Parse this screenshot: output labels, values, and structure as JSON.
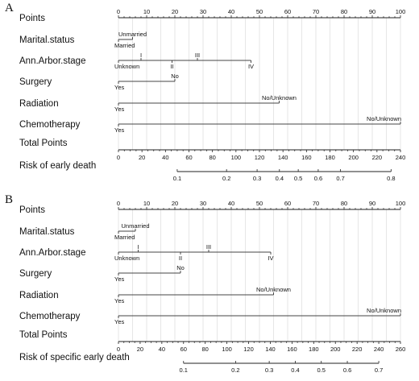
{
  "chart_data": [
    {
      "type": "nomogram",
      "panel": "A",
      "points_axis": {
        "label": "Points",
        "range": [
          0,
          100
        ],
        "ticks": [
          0,
          10,
          20,
          30,
          40,
          50,
          60,
          70,
          80,
          90,
          100
        ]
      },
      "variables": [
        {
          "name": "Marital.status",
          "categories": [
            {
              "label": "Married",
              "points": 0
            },
            {
              "label": "Unmarried",
              "points": 5
            }
          ]
        },
        {
          "name": "Ann.Arbor.stage",
          "categories": [
            {
              "label": "Unknown",
              "points": 0
            },
            {
              "label": "I",
              "points": 8
            },
            {
              "label": "II",
              "points": 19
            },
            {
              "label": "III",
              "points": 28
            },
            {
              "label": "IV",
              "points": 47
            }
          ]
        },
        {
          "name": "Surgery",
          "categories": [
            {
              "label": "Yes",
              "points": 0
            },
            {
              "label": "No",
              "points": 20
            }
          ]
        },
        {
          "name": "Radiation",
          "categories": [
            {
              "label": "Yes",
              "points": 0
            },
            {
              "label": "No/Unknown",
              "points": 57
            }
          ]
        },
        {
          "name": "Chemotherapy",
          "categories": [
            {
              "label": "Yes",
              "points": 0
            },
            {
              "label": "No/Unknown",
              "points": 100
            }
          ]
        }
      ],
      "total_points_axis": {
        "label": "Total Points",
        "range": [
          0,
          240
        ],
        "ticks": [
          0,
          20,
          40,
          60,
          80,
          100,
          120,
          140,
          160,
          180,
          200,
          220,
          240
        ]
      },
      "risk_axis": {
        "label": "Risk of early death",
        "ticks": [
          {
            "label": "0.1",
            "total": 50
          },
          {
            "label": "0.2",
            "total": 92
          },
          {
            "label": "0.3",
            "total": 118
          },
          {
            "label": "0.4",
            "total": 137
          },
          {
            "label": "0.5",
            "total": 153
          },
          {
            "label": "0.6",
            "total": 170
          },
          {
            "label": "0.7",
            "total": 189
          },
          {
            "label": "0.8",
            "total": 232
          }
        ]
      }
    },
    {
      "type": "nomogram",
      "panel": "B",
      "points_axis": {
        "label": "Points",
        "range": [
          0,
          100
        ],
        "ticks": [
          0,
          10,
          20,
          30,
          40,
          50,
          60,
          70,
          80,
          90,
          100
        ]
      },
      "variables": [
        {
          "name": "Marital.status",
          "categories": [
            {
              "label": "Married",
              "points": 0
            },
            {
              "label": "Unmarried",
              "points": 6
            }
          ]
        },
        {
          "name": "Ann.Arbor.stage",
          "categories": [
            {
              "label": "Unknown",
              "points": 0
            },
            {
              "label": "I",
              "points": 7
            },
            {
              "label": "II",
              "points": 22
            },
            {
              "label": "III",
              "points": 32
            },
            {
              "label": "IV",
              "points": 54
            }
          ]
        },
        {
          "name": "Surgery",
          "categories": [
            {
              "label": "Yes",
              "points": 0
            },
            {
              "label": "No",
              "points": 22
            }
          ]
        },
        {
          "name": "Radiation",
          "categories": [
            {
              "label": "Yes",
              "points": 0
            },
            {
              "label": "No/Unknown",
              "points": 55
            }
          ]
        },
        {
          "name": "Chemotherapy",
          "categories": [
            {
              "label": "Yes",
              "points": 0
            },
            {
              "label": "No/Unknown",
              "points": 100
            }
          ]
        }
      ],
      "total_points_axis": {
        "label": "Total Points",
        "range": [
          0,
          260
        ],
        "ticks": [
          0,
          20,
          40,
          60,
          80,
          100,
          120,
          140,
          160,
          180,
          200,
          220,
          240,
          260
        ]
      },
      "risk_axis": {
        "label": "Risk of specific early death",
        "ticks": [
          {
            "label": "0.1",
            "total": 60
          },
          {
            "label": "0.2",
            "total": 108
          },
          {
            "label": "0.3",
            "total": 139
          },
          {
            "label": "0.4",
            "total": 163
          },
          {
            "label": "0.5",
            "total": 187
          },
          {
            "label": "0.6",
            "total": 211
          },
          {
            "label": "0.7",
            "total": 240
          }
        ]
      }
    }
  ]
}
